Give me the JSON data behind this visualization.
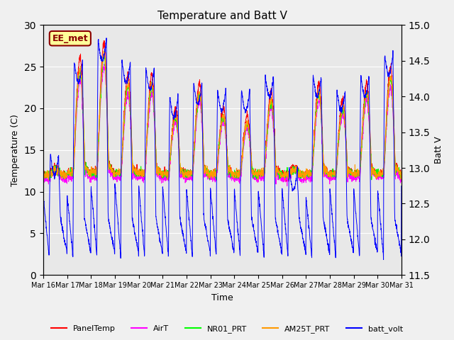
{
  "title": "Temperature and Batt V",
  "xlabel": "Time",
  "ylabel_left": "Temperature (C)",
  "ylabel_right": "Batt V",
  "annotation_text": "EE_met",
  "ylim_left": [
    0,
    30
  ],
  "ylim_right": [
    11.5,
    15.0
  ],
  "yticks_left": [
    0,
    5,
    10,
    15,
    20,
    25,
    30
  ],
  "yticks_right": [
    11.5,
    12.0,
    12.5,
    13.0,
    13.5,
    14.0,
    14.5,
    15.0
  ],
  "xtick_labels": [
    "Mar 16",
    "Mar 17",
    "Mar 18",
    "Mar 19",
    "Mar 20",
    "Mar 21",
    "Mar 22",
    "Mar 23",
    "Mar 24",
    "Mar 25",
    "Mar 26",
    "Mar 27",
    "Mar 28",
    "Mar 29",
    "Mar 30",
    "Mar 31"
  ],
  "line_colors": {
    "PanelTemp": "#ff0000",
    "AirT": "#ff00ff",
    "NR01_PRT": "#00ff00",
    "AM25T_PRT": "#ff9900",
    "batt_volt": "#0000ff"
  },
  "legend_labels": [
    "PanelTemp",
    "AirT",
    "NR01_PRT",
    "AM25T_PRT",
    "batt_volt"
  ],
  "plot_bg": "#e8e8e8",
  "n_days": 15,
  "pts_per_day": 144,
  "peak_heights": [
    13,
    26,
    28,
    24,
    24,
    20,
    23,
    20,
    19,
    22,
    13,
    23,
    21,
    23,
    25,
    27
  ],
  "night_base": 12.0,
  "figsize": [
    6.4,
    4.8
  ],
  "dpi": 100
}
